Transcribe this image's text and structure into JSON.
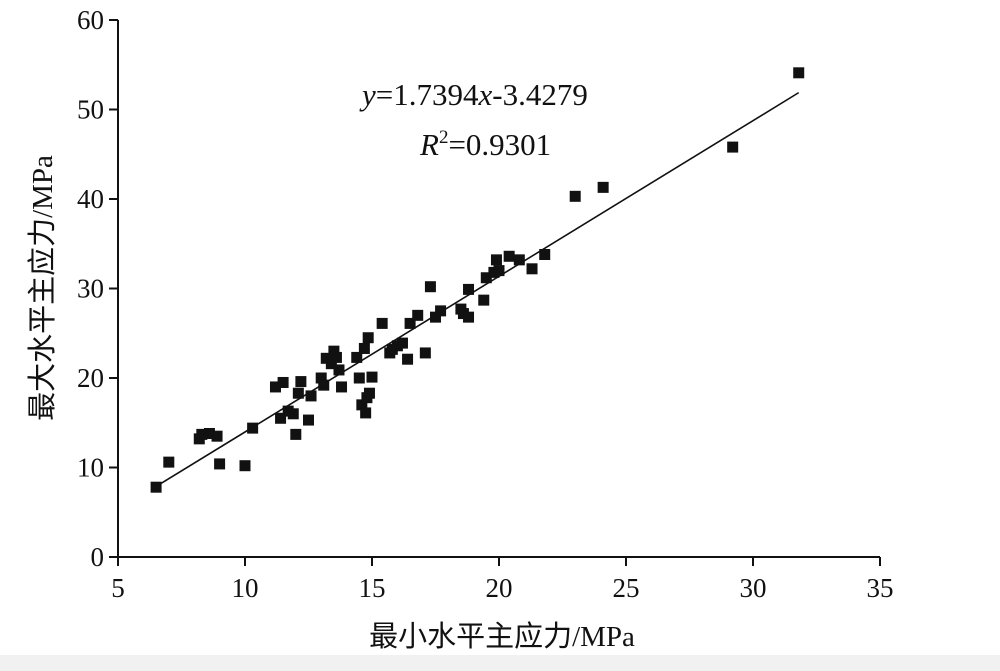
{
  "chart_data": {
    "type": "scatter",
    "title": "",
    "xlabel": "最小水平主应力/MPa",
    "ylabel": "最大水平主应力/MPa",
    "xlim": [
      5,
      35
    ],
    "ylim": [
      0,
      60
    ],
    "xticks": [
      5,
      10,
      15,
      20,
      25,
      30,
      35
    ],
    "yticks": [
      0,
      10,
      20,
      30,
      40,
      50,
      60
    ],
    "grid": false,
    "legend": "none",
    "marker_color": "#111111",
    "trendline": {
      "slope": 1.7394,
      "intercept": -3.4279,
      "x_range": [
        6.5,
        31.8
      ],
      "equation": {
        "y": "y",
        "eq_left": "=1.7394",
        "x": "x",
        "eq_right": "-3.4279"
      },
      "r2": {
        "r": "R",
        "sup": "2",
        "val": "=0.9301"
      }
    },
    "points": [
      {
        "x": 6.5,
        "y": 7.8
      },
      {
        "x": 7.0,
        "y": 10.6
      },
      {
        "x": 8.2,
        "y": 13.2
      },
      {
        "x": 8.3,
        "y": 13.7
      },
      {
        "x": 8.6,
        "y": 13.8
      },
      {
        "x": 8.9,
        "y": 13.5
      },
      {
        "x": 9.0,
        "y": 10.4
      },
      {
        "x": 10.0,
        "y": 10.2
      },
      {
        "x": 10.3,
        "y": 14.4
      },
      {
        "x": 11.2,
        "y": 19.0
      },
      {
        "x": 11.4,
        "y": 15.5
      },
      {
        "x": 11.5,
        "y": 19.5
      },
      {
        "x": 11.7,
        "y": 16.3
      },
      {
        "x": 11.9,
        "y": 16.0
      },
      {
        "x": 12.0,
        "y": 13.7
      },
      {
        "x": 12.1,
        "y": 18.3
      },
      {
        "x": 12.2,
        "y": 19.6
      },
      {
        "x": 12.5,
        "y": 15.3
      },
      {
        "x": 12.6,
        "y": 18.0
      },
      {
        "x": 13.0,
        "y": 20.0
      },
      {
        "x": 13.1,
        "y": 19.2
      },
      {
        "x": 13.2,
        "y": 22.2
      },
      {
        "x": 13.4,
        "y": 21.6
      },
      {
        "x": 13.5,
        "y": 23.0
      },
      {
        "x": 13.6,
        "y": 22.3
      },
      {
        "x": 13.7,
        "y": 20.9
      },
      {
        "x": 13.8,
        "y": 19.0
      },
      {
        "x": 14.4,
        "y": 22.3
      },
      {
        "x": 14.5,
        "y": 20.0
      },
      {
        "x": 14.6,
        "y": 17.0
      },
      {
        "x": 14.7,
        "y": 23.3
      },
      {
        "x": 14.75,
        "y": 16.1
      },
      {
        "x": 14.8,
        "y": 17.8
      },
      {
        "x": 14.85,
        "y": 24.5
      },
      {
        "x": 14.9,
        "y": 18.3
      },
      {
        "x": 15.0,
        "y": 20.1
      },
      {
        "x": 15.4,
        "y": 26.1
      },
      {
        "x": 15.7,
        "y": 22.8
      },
      {
        "x": 15.8,
        "y": 23.2
      },
      {
        "x": 16.0,
        "y": 23.6
      },
      {
        "x": 16.2,
        "y": 23.9
      },
      {
        "x": 16.4,
        "y": 22.1
      },
      {
        "x": 16.5,
        "y": 26.1
      },
      {
        "x": 16.8,
        "y": 27.0
      },
      {
        "x": 17.1,
        "y": 22.8
      },
      {
        "x": 17.3,
        "y": 30.2
      },
      {
        "x": 17.5,
        "y": 26.8
      },
      {
        "x": 17.7,
        "y": 27.5
      },
      {
        "x": 18.5,
        "y": 27.7
      },
      {
        "x": 18.6,
        "y": 27.2
      },
      {
        "x": 18.8,
        "y": 26.8
      },
      {
        "x": 18.8,
        "y": 29.9
      },
      {
        "x": 19.4,
        "y": 28.7
      },
      {
        "x": 19.5,
        "y": 31.2
      },
      {
        "x": 19.8,
        "y": 31.8
      },
      {
        "x": 19.9,
        "y": 33.2
      },
      {
        "x": 20.0,
        "y": 32.0
      },
      {
        "x": 20.4,
        "y": 33.6
      },
      {
        "x": 20.8,
        "y": 33.2
      },
      {
        "x": 21.3,
        "y": 32.2
      },
      {
        "x": 21.8,
        "y": 33.8
      },
      {
        "x": 23.0,
        "y": 40.3
      },
      {
        "x": 24.1,
        "y": 41.3
      },
      {
        "x": 29.2,
        "y": 45.8
      },
      {
        "x": 31.8,
        "y": 54.1
      }
    ]
  }
}
